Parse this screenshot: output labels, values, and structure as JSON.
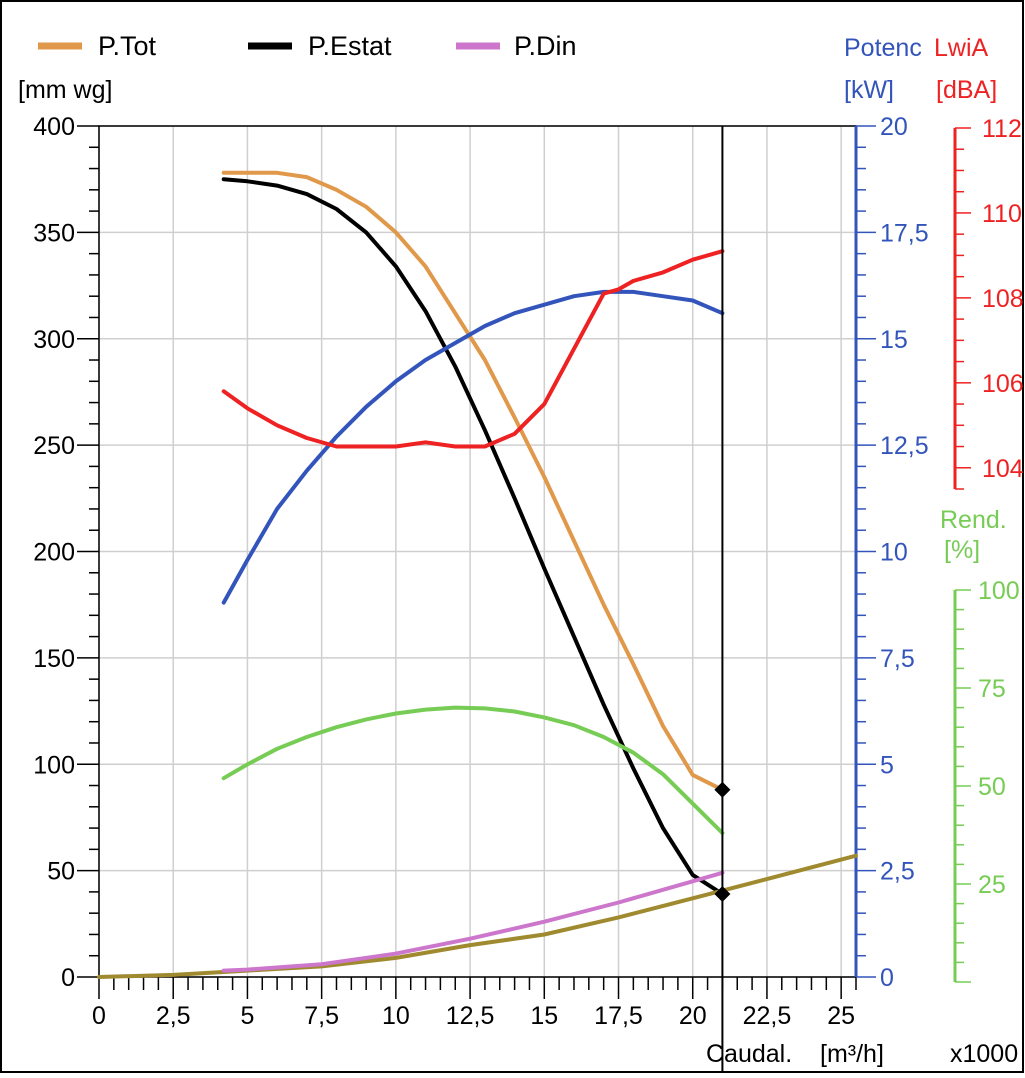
{
  "chart_data": {
    "type": "line",
    "legend": {
      "placement": "top-left",
      "items": [
        {
          "label": "P.Tot",
          "color": "#e0984a"
        },
        {
          "label": "P.Estat",
          "color": "#000000"
        },
        {
          "label": "P.Din",
          "color": "#cc77cc"
        }
      ]
    },
    "x_axis": {
      "label": "Caudal.",
      "unit": "[m³/h]",
      "multiplier": "x1000",
      "min": 0,
      "max": 25.5,
      "ticks": [
        {
          "value": 0,
          "label": "0"
        },
        {
          "value": 2.5,
          "label": "2,5"
        },
        {
          "value": 5,
          "label": "5"
        },
        {
          "value": 7.5,
          "label": "7,5"
        },
        {
          "value": 10,
          "label": "10"
        },
        {
          "value": 12.5,
          "label": "12,5"
        },
        {
          "value": 15,
          "label": "15"
        },
        {
          "value": 17.5,
          "label": "17,5"
        },
        {
          "value": 20,
          "label": "20"
        },
        {
          "value": 22.5,
          "label": "22,5"
        },
        {
          "value": 25,
          "label": "25"
        }
      ]
    },
    "y_axis_pressure": {
      "unit": "[mm wg]",
      "min": 0,
      "max": 400,
      "color": "#000000",
      "ticks": [
        {
          "value": 0,
          "label": "0"
        },
        {
          "value": 50,
          "label": "50"
        },
        {
          "value": 100,
          "label": "100"
        },
        {
          "value": 150,
          "label": "150"
        },
        {
          "value": 200,
          "label": "200"
        },
        {
          "value": 250,
          "label": "250"
        },
        {
          "value": 300,
          "label": "300"
        },
        {
          "value": 350,
          "label": "350"
        },
        {
          "value": 400,
          "label": "400"
        }
      ]
    },
    "y_axis_power": {
      "title": "Potenc",
      "unit": "[kW]",
      "min": 0,
      "max": 20,
      "color": "#3355bb",
      "ticks": [
        {
          "value": 0,
          "label": "0"
        },
        {
          "value": 2.5,
          "label": "2,5"
        },
        {
          "value": 5,
          "label": "5"
        },
        {
          "value": 7.5,
          "label": "7,5"
        },
        {
          "value": 10,
          "label": "10"
        },
        {
          "value": 12.5,
          "label": "12,5"
        },
        {
          "value": 15,
          "label": "15"
        },
        {
          "value": 17.5,
          "label": "17,5"
        },
        {
          "value": 20,
          "label": "20"
        }
      ]
    },
    "y_axis_sound": {
      "title": "LwiA",
      "unit": "[dBA]",
      "min": 103.5,
      "max": 112,
      "color": "#ee2222",
      "ticks": [
        {
          "value": 104,
          "label": "104"
        },
        {
          "value": 106,
          "label": "106"
        },
        {
          "value": 108,
          "label": "108"
        },
        {
          "value": 110,
          "label": "110"
        },
        {
          "value": 112,
          "label": "112"
        }
      ]
    },
    "y_axis_efficiency": {
      "title": "Rend.",
      "unit": "[%]",
      "min": 0,
      "max": 100,
      "color": "#77cc55",
      "ticks": [
        {
          "value": 25,
          "label": "25"
        },
        {
          "value": 50,
          "label": "50"
        },
        {
          "value": 75,
          "label": "75"
        },
        {
          "value": 100,
          "label": "100"
        }
      ]
    },
    "grid": true,
    "operating_point": {
      "x": 21,
      "markers": [
        {
          "series": "P.Tot",
          "y": 88
        },
        {
          "series": "P.Estat",
          "y": 39
        }
      ]
    },
    "series": [
      {
        "name": "P.Tot",
        "axis": "pressure",
        "color": "#e0984a",
        "x": [
          4.2,
          5,
          6,
          7,
          8,
          9,
          10,
          11,
          12,
          13,
          14,
          15,
          16,
          17,
          18,
          19,
          20,
          21
        ],
        "y": [
          378,
          378,
          378,
          376,
          370,
          362,
          350,
          334,
          312,
          290,
          263,
          235,
          205,
          175,
          147,
          118,
          95,
          88
        ]
      },
      {
        "name": "P.Estat",
        "axis": "pressure",
        "color": "#000000",
        "x": [
          4.2,
          5,
          6,
          7,
          8,
          9,
          10,
          11,
          12,
          13,
          14,
          15,
          16,
          17,
          18,
          19,
          20,
          21
        ],
        "y": [
          375,
          374,
          372,
          368,
          361,
          350,
          334,
          313,
          287,
          257,
          225,
          192,
          160,
          128,
          98,
          70,
          48,
          39
        ]
      },
      {
        "series_type": "unlabeled",
        "axis": "pressure",
        "color": "#a08a30",
        "x": [
          0,
          2.5,
          5,
          7.5,
          10,
          12.5,
          15,
          17.5,
          20,
          22.5,
          25.5
        ],
        "y": [
          0,
          1,
          3,
          5,
          9,
          15,
          20,
          28,
          37,
          46,
          57
        ]
      },
      {
        "name": "P.Din",
        "axis": "pressure",
        "color": "#cc77cc",
        "x": [
          4.2,
          5,
          7.5,
          10,
          12.5,
          15,
          17.5,
          20,
          21
        ],
        "y": [
          3,
          3.5,
          6,
          11,
          18,
          26,
          35,
          45,
          49
        ]
      },
      {
        "axis": "power",
        "color": "#3355bb",
        "x": [
          4.2,
          5,
          6,
          7,
          8,
          9,
          10,
          11,
          12,
          13,
          14,
          15,
          16,
          17,
          18,
          19,
          20,
          21
        ],
        "y": [
          8.8,
          9.8,
          11.0,
          11.9,
          12.7,
          13.4,
          14.0,
          14.5,
          14.9,
          15.3,
          15.6,
          15.8,
          16.0,
          16.1,
          16.1,
          16.0,
          15.9,
          15.6
        ]
      },
      {
        "axis": "sound",
        "color": "#ee2222",
        "x": [
          4.2,
          5,
          6,
          7,
          8,
          9,
          10,
          11,
          12,
          13,
          14,
          15,
          16,
          17,
          17.5,
          18,
          19,
          20,
          21
        ],
        "y": [
          105.8,
          105.4,
          105.0,
          104.7,
          104.5,
          104.5,
          104.5,
          104.6,
          104.5,
          104.5,
          104.8,
          105.5,
          106.8,
          108.1,
          108.2,
          108.4,
          108.6,
          108.9,
          109.1
        ]
      },
      {
        "axis": "efficiency",
        "color": "#77cc55",
        "x": [
          4.2,
          5,
          6,
          7,
          8,
          9,
          10,
          11,
          12,
          13,
          14,
          15,
          16,
          17,
          18,
          19,
          20,
          21
        ],
        "y": [
          52,
          55.5,
          59.5,
          62.5,
          65,
          67,
          68.5,
          69.5,
          70,
          69.8,
          69,
          67.5,
          65.5,
          62.5,
          58.5,
          53,
          45.5,
          38
        ]
      }
    ]
  }
}
